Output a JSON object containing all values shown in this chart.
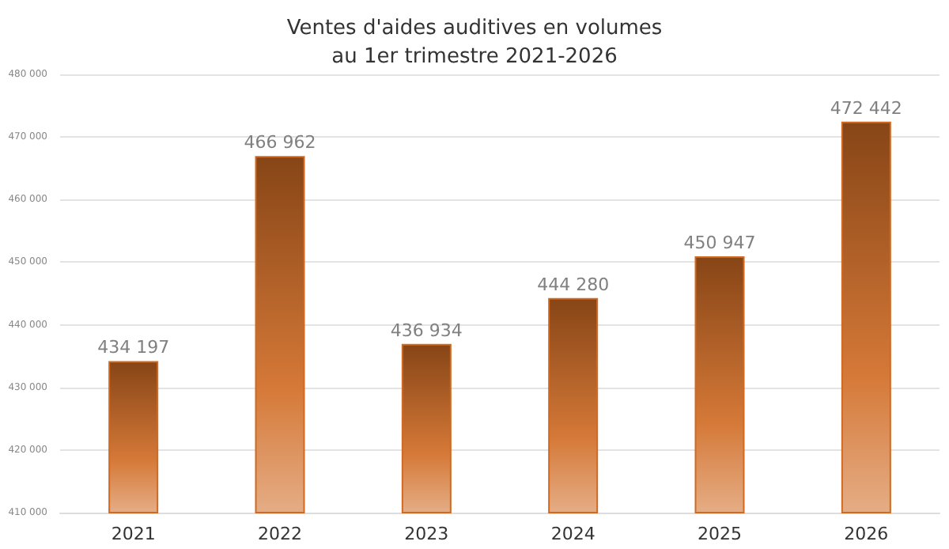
{
  "chart_data": {
    "type": "bar",
    "title": "Ventes d'aides auditives en volumes\nau 1er trimestre 2021-2026",
    "categories": [
      "2021",
      "2022",
      "2023",
      "2024",
      "2025",
      "2026"
    ],
    "values": [
      434197,
      466962,
      436934,
      444280,
      450947,
      472442
    ],
    "value_labels": [
      "434 197",
      "466 962",
      "436 934",
      "444 280",
      "450 947",
      "472 442"
    ],
    "color": "#d06a22",
    "ylim": [
      410000,
      480000
    ],
    "yticks": [
      {
        "value": 410000,
        "label": "410 000"
      },
      {
        "value": 420000,
        "label": "420 000"
      },
      {
        "value": 430000,
        "label": "430 000"
      },
      {
        "value": 440000,
        "label": "440 000"
      },
      {
        "value": 450000,
        "label": "450 000"
      },
      {
        "value": 460000,
        "label": "460 000"
      },
      {
        "value": 470000,
        "label": "470 000"
      },
      {
        "value": 480000,
        "label": "480 000"
      }
    ],
    "grid": "y"
  }
}
